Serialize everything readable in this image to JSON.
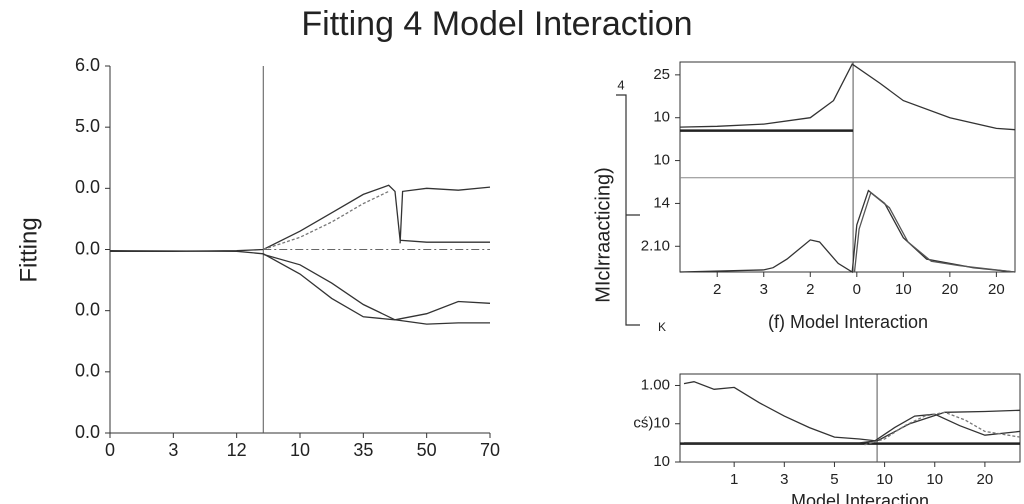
{
  "chart_data": [
    {
      "type": "line",
      "title": "Fitting 4 Model Interaction",
      "ylabel": "Fitting",
      "xlim": [
        0,
        6
      ],
      "ylim": [
        0,
        6
      ],
      "xticks": [
        0,
        {
          "value": 1,
          "label": "3"
        },
        {
          "value": 2,
          "label": "12"
        },
        {
          "value": 3,
          "label": "10"
        },
        {
          "value": 4,
          "label": "35"
        },
        {
          "value": 5,
          "label": "50"
        },
        {
          "value": 6,
          "label": "70"
        }
      ],
      "yticks": [
        {
          "value": 0,
          "label": "0.0"
        },
        {
          "value": 1,
          "label": "0.0"
        },
        {
          "value": 2,
          "label": "0.0"
        },
        {
          "value": 3,
          "label": "0.0"
        },
        {
          "value": 4,
          "label": "0.0"
        },
        {
          "value": 5,
          "label": "5.0"
        },
        {
          "value": 6,
          "label": "6.0"
        }
      ],
      "vlines": [
        2.42
      ],
      "hlines": [
        {
          "value": 3,
          "from": 2.42,
          "style": "dashdot"
        }
      ],
      "series": [
        {
          "color": "#333",
          "x": [
            0,
            1,
            2,
            2.42,
            3,
            3.5,
            4,
            4.4,
            4.5,
            4.58,
            5,
            6
          ],
          "values": [
            2.97,
            2.97,
            2.98,
            3.0,
            3.3,
            3.6,
            3.9,
            4.05,
            3.95,
            3.15,
            3.12,
            3.12
          ]
        },
        {
          "color": "#333",
          "x": [
            4.58,
            4.62,
            5,
            5.5,
            6
          ],
          "values": [
            3.1,
            3.95,
            4.0,
            3.97,
            4.02
          ]
        },
        {
          "color": "#777",
          "style": "dashed",
          "x": [
            2.42,
            3,
            3.5,
            4,
            4.4
          ],
          "values": [
            3.0,
            3.2,
            3.45,
            3.75,
            3.95
          ]
        },
        {
          "color": "#333",
          "x": [
            0,
            2,
            2.42,
            3,
            3.5,
            4,
            4.5,
            5,
            5.5,
            6
          ],
          "values": [
            2.98,
            2.97,
            2.93,
            2.6,
            2.2,
            1.9,
            1.85,
            1.95,
            2.15,
            2.12
          ]
        },
        {
          "color": "#333",
          "x": [
            2.42,
            3,
            3.5,
            4,
            4.5,
            5,
            5.5,
            6
          ],
          "values": [
            2.92,
            2.75,
            2.45,
            2.1,
            1.85,
            1.78,
            1.8,
            1.8
          ]
        }
      ]
    },
    {
      "type": "line",
      "xlabel": "(f) Model Interaction",
      "ylabel": "MIclrraacticing)",
      "annotations": [
        "4",
        "K"
      ],
      "xlim": [
        -0.8,
        6.4
      ],
      "ylim": [
        -0.6,
        4.3
      ],
      "xticks": [
        {
          "value": 0,
          "label": "2"
        },
        {
          "value": 1,
          "label": "3"
        },
        {
          "value": 2,
          "label": "2"
        },
        {
          "value": 3,
          "label": "0"
        },
        {
          "value": 4,
          "label": "10"
        },
        {
          "value": 5,
          "label": "20"
        },
        {
          "value": 6,
          "label": "20"
        }
      ],
      "yticks": [
        {
          "value": 0,
          "label": "2.10"
        },
        {
          "value": 1,
          "label": "14"
        },
        {
          "value": 2,
          "label": "10"
        },
        {
          "value": 3,
          "label": "10"
        },
        {
          "value": 4,
          "label": "25"
        }
      ],
      "vlines": [
        2.92
      ],
      "hlines": [
        {
          "value": 1.6,
          "style": "gray"
        },
        {
          "value": 2.7,
          "to": 2.92,
          "style": "thick"
        }
      ],
      "series": [
        {
          "color": "#333",
          "x": [
            -0.8,
            0,
            1,
            2,
            2.5,
            2.9,
            3.5,
            4,
            5,
            6,
            6.4
          ],
          "values": [
            2.78,
            2.8,
            2.85,
            3.0,
            3.4,
            4.25,
            3.8,
            3.4,
            3.0,
            2.75,
            2.72
          ]
        },
        {
          "color": "#333",
          "x": [
            -0.8,
            1,
            1.2,
            1.5,
            2,
            2.2,
            2.6,
            2.9,
            3.0,
            3.25,
            3.6,
            4,
            4.5,
            5,
            5.5,
            6.4
          ],
          "values": [
            -0.6,
            -0.55,
            -0.5,
            -0.3,
            0.15,
            0.1,
            -0.4,
            -0.6,
            0.5,
            1.3,
            1.0,
            0.2,
            -0.3,
            -0.4,
            -0.5,
            -0.6
          ]
        },
        {
          "color": "#555",
          "x": [
            2.95,
            3.05,
            3.3,
            3.7,
            4.1,
            4.6,
            5.2,
            6.4
          ],
          "values": [
            -0.6,
            0.4,
            1.25,
            0.9,
            0.1,
            -0.35,
            -0.45,
            -0.6
          ]
        }
      ]
    },
    {
      "type": "line",
      "xlabel": "Model Interaction",
      "xlim": [
        -1.08,
        5.7
      ],
      "ylim": [
        0,
        2.3
      ],
      "xticks": [
        {
          "value": 0,
          "label": "1"
        },
        {
          "value": 1,
          "label": "3"
        },
        {
          "value": 2,
          "label": "5"
        },
        {
          "value": 3,
          "label": "10"
        },
        {
          "value": 4,
          "label": "10"
        },
        {
          "value": 5,
          "label": "20"
        }
      ],
      "yticks": [
        {
          "value": 0,
          "label": "10"
        },
        {
          "value": 1,
          "label": "cś)10"
        },
        {
          "value": 2,
          "label": "1.00"
        }
      ],
      "vlines": [
        2.85
      ],
      "hlines": [
        {
          "value": 0.48,
          "style": "thick"
        }
      ],
      "series": [
        {
          "color": "#333",
          "x": [
            -1.0,
            -0.8,
            -0.4,
            0,
            0.5,
            1,
            1.5,
            2,
            2.5,
            2.85,
            3.5,
            4.2,
            5,
            5.7
          ],
          "values": [
            2.05,
            2.1,
            1.9,
            1.95,
            1.55,
            1.2,
            0.9,
            0.65,
            0.6,
            0.55,
            1.0,
            1.3,
            1.32,
            1.35
          ]
        },
        {
          "color": "#333",
          "x": [
            -1.0,
            1,
            2.5,
            2.8,
            3.2,
            3.6,
            4,
            4.5,
            5,
            5.7
          ],
          "values": [
            0.5,
            0.5,
            0.5,
            0.55,
            0.9,
            1.2,
            1.25,
            0.95,
            0.7,
            0.8
          ]
        },
        {
          "color": "#777",
          "style": "dashed",
          "x": [
            2.6,
            3,
            3.4,
            3.8,
            4.2,
            4.6,
            5,
            5.7
          ],
          "values": [
            0.45,
            0.6,
            0.95,
            1.2,
            1.3,
            1.1,
            0.8,
            0.65
          ]
        }
      ]
    }
  ]
}
